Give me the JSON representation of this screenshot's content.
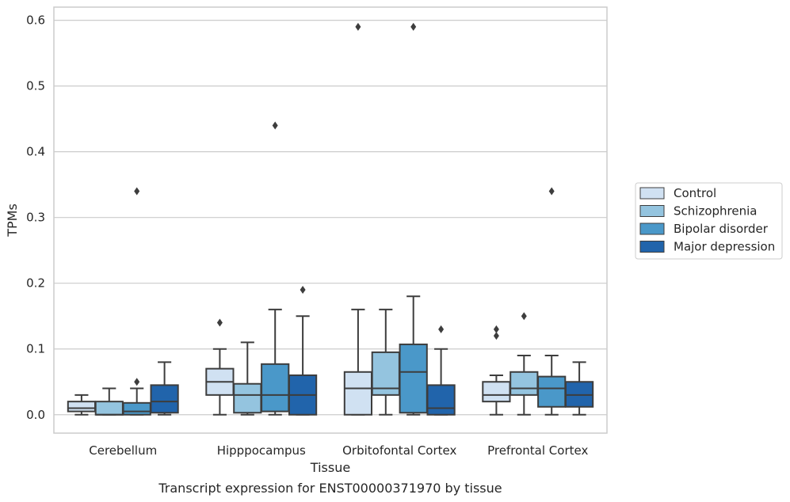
{
  "chart_data": {
    "type": "box",
    "title": "",
    "caption": "Transcript expression for ENST00000371970 by tissue",
    "xlabel": "Tissue",
    "ylabel": "TPMs",
    "ylim": [
      -0.028,
      0.62
    ],
    "yticks": [
      0.0,
      0.1,
      0.2,
      0.3,
      0.4,
      0.5,
      0.6
    ],
    "ytick_labels": [
      "0.0",
      "0.1",
      "0.2",
      "0.3",
      "0.4",
      "0.5",
      "0.6"
    ],
    "grid": "horizontal",
    "legend_position": "right",
    "categories": [
      "Cerebellum",
      "Hipppocampus",
      "Orbitofontal Cortex",
      "Prefrontal Cortex"
    ],
    "series": [
      {
        "name": "Control",
        "color": "#d0e1f2",
        "boxes": [
          {
            "whislo": 0.0,
            "q1": 0.005,
            "med": 0.01,
            "q3": 0.02,
            "whishi": 0.03,
            "fliers": []
          },
          {
            "whislo": 0.0,
            "q1": 0.03,
            "med": 0.05,
            "q3": 0.07,
            "whishi": 0.1,
            "fliers": [
              0.14
            ]
          },
          {
            "whislo": 0.0,
            "q1": 0.0,
            "med": 0.04,
            "q3": 0.065,
            "whishi": 0.16,
            "fliers": [
              0.59
            ]
          },
          {
            "whislo": 0.0,
            "q1": 0.02,
            "med": 0.03,
            "q3": 0.05,
            "whishi": 0.06,
            "fliers": [
              0.12,
              0.13
            ]
          }
        ]
      },
      {
        "name": "Schizophrenia",
        "color": "#94c4df",
        "boxes": [
          {
            "whislo": 0.0,
            "q1": 0.0,
            "med": 0.0,
            "q3": 0.02,
            "whishi": 0.04,
            "fliers": []
          },
          {
            "whislo": 0.0,
            "q1": 0.003,
            "med": 0.03,
            "q3": 0.047,
            "whishi": 0.11,
            "fliers": []
          },
          {
            "whislo": 0.0,
            "q1": 0.03,
            "med": 0.04,
            "q3": 0.095,
            "whishi": 0.16,
            "fliers": []
          },
          {
            "whislo": 0.0,
            "q1": 0.03,
            "med": 0.04,
            "q3": 0.065,
            "whishi": 0.09,
            "fliers": [
              0.15
            ]
          }
        ]
      },
      {
        "name": "Bipolar disorder",
        "color": "#4a98c9",
        "boxes": [
          {
            "whislo": 0.0,
            "q1": 0.0,
            "med": 0.005,
            "q3": 0.018,
            "whishi": 0.04,
            "fliers": [
              0.05,
              0.34
            ]
          },
          {
            "whislo": 0.0,
            "q1": 0.005,
            "med": 0.03,
            "q3": 0.077,
            "whishi": 0.16,
            "fliers": [
              0.44
            ]
          },
          {
            "whislo": 0.0,
            "q1": 0.003,
            "med": 0.065,
            "q3": 0.107,
            "whishi": 0.18,
            "fliers": [
              0.59
            ]
          },
          {
            "whislo": 0.0,
            "q1": 0.012,
            "med": 0.04,
            "q3": 0.058,
            "whishi": 0.09,
            "fliers": [
              0.34
            ]
          }
        ]
      },
      {
        "name": "Major depression",
        "color": "#2164ab",
        "boxes": [
          {
            "whislo": 0.0,
            "q1": 0.003,
            "med": 0.02,
            "q3": 0.045,
            "whishi": 0.08,
            "fliers": []
          },
          {
            "whislo": 0.0,
            "q1": 0.0,
            "med": 0.03,
            "q3": 0.06,
            "whishi": 0.15,
            "fliers": [
              0.19
            ]
          },
          {
            "whislo": 0.0,
            "q1": 0.0,
            "med": 0.01,
            "q3": 0.045,
            "whishi": 0.1,
            "fliers": [
              0.13
            ]
          },
          {
            "whislo": 0.0,
            "q1": 0.012,
            "med": 0.03,
            "q3": 0.05,
            "whishi": 0.08,
            "fliers": []
          }
        ]
      }
    ]
  }
}
